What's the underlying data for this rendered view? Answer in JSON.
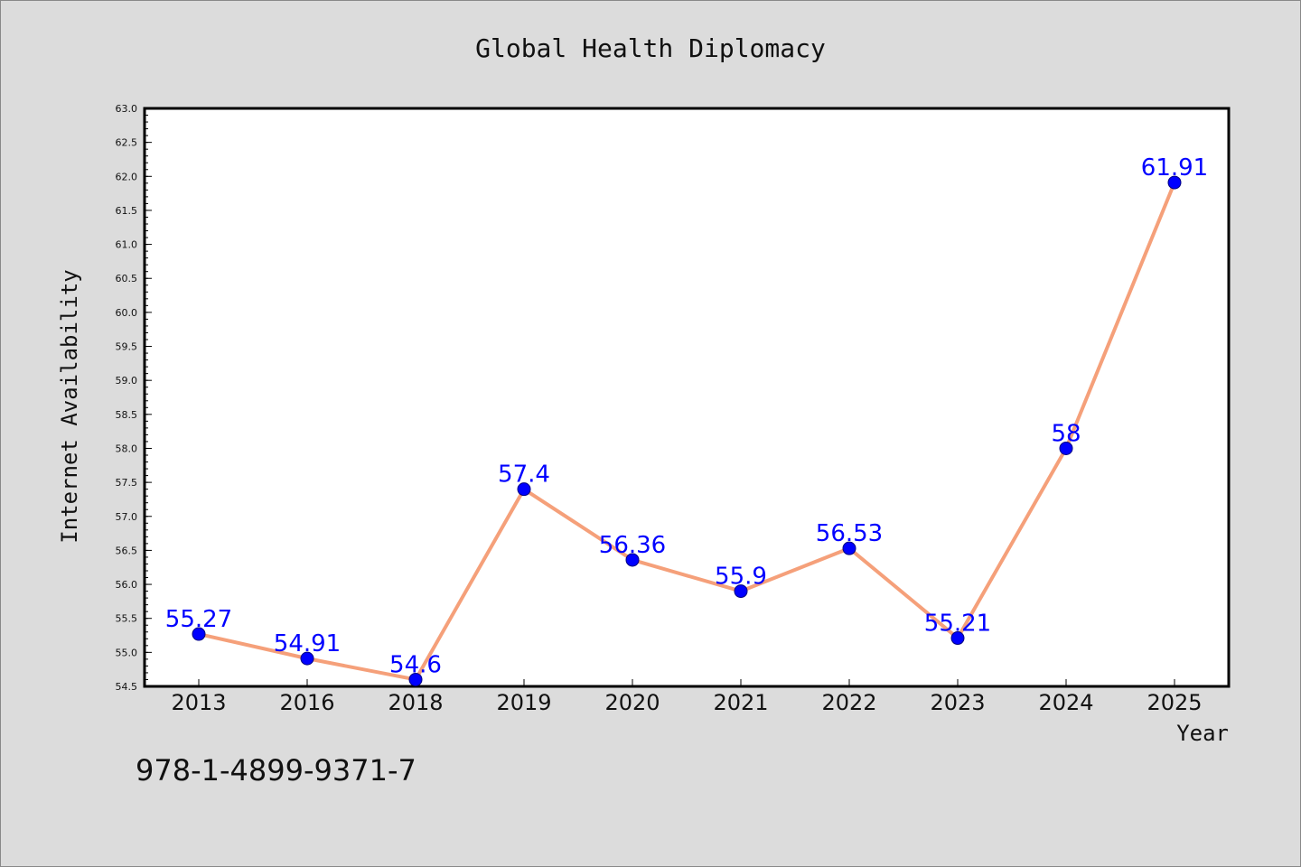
{
  "chart_data": {
    "type": "line",
    "title": "Global Health Diplomacy",
    "xlabel": "Year",
    "ylabel": "Internet Availability",
    "categories": [
      "2013",
      "2016",
      "2018",
      "2019",
      "2020",
      "2021",
      "2022",
      "2023",
      "2024",
      "2025"
    ],
    "series": [
      {
        "values": [
          55.27,
          54.91,
          54.6,
          57.4,
          56.36,
          55.9,
          56.53,
          55.21,
          58,
          61.91
        ],
        "labels": [
          "55.27",
          "54.91",
          "54.6",
          "57.4",
          "56.36",
          "55.9",
          "56.53",
          "55.21",
          "58",
          "61.91"
        ],
        "line_color": "#f5a07a",
        "marker_color": "#0000ff"
      }
    ],
    "ylim": [
      54.5,
      63.0
    ],
    "yticks": [
      "54.5",
      "55.0",
      "55.5",
      "56.0",
      "56.5",
      "57.0",
      "57.5",
      "58.0",
      "58.5",
      "59.0",
      "59.5",
      "60.0",
      "60.5",
      "61.0",
      "61.5",
      "62.0",
      "62.5",
      "63.0"
    ],
    "grid": false,
    "legend": "none",
    "label_color": "#0000ff"
  },
  "footnote": "978-1-4899-9371-7",
  "colors": {
    "background": "#dcdcdc",
    "plot_background": "#ffffff"
  }
}
